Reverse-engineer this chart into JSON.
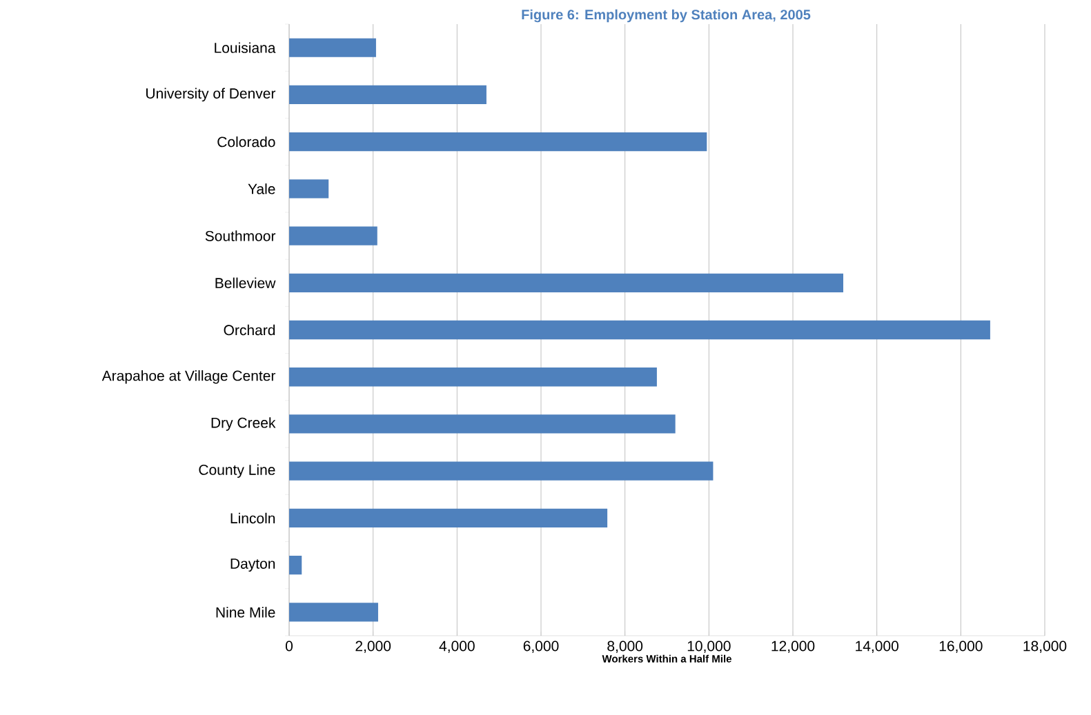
{
  "chart_data": {
    "type": "bar",
    "orientation": "horizontal",
    "title": "Figure 6: Employment by Station Area, 2005",
    "xlabel": "Workers Within a Half Mile",
    "categories": [
      "Louisiana",
      "University of Denver",
      "Colorado",
      "Yale",
      "Southmoor",
      "Belleview",
      "Orchard",
      "Arapahoe at Village Center",
      "Dry Creek",
      "County Line",
      "Lincoln",
      "Dayton",
      "Nine Mile"
    ],
    "values": [
      2070,
      4700,
      9950,
      940,
      2100,
      13200,
      16700,
      8760,
      9200,
      10100,
      7580,
      300,
      2120
    ],
    "color": "#4f81bd",
    "xlim": [
      0,
      18000
    ],
    "xticks": [
      {
        "value": 0,
        "label": "0"
      },
      {
        "value": 2000,
        "label": "2,000"
      },
      {
        "value": 4000,
        "label": "4,000"
      },
      {
        "value": 6000,
        "label": "6,000"
      },
      {
        "value": 8000,
        "label": "8,000"
      },
      {
        "value": 10000,
        "label": "10,000"
      },
      {
        "value": 12000,
        "label": "12,000"
      },
      {
        "value": 14000,
        "label": "14,000"
      },
      {
        "value": 16000,
        "label": "16,000"
      },
      {
        "value": 18000,
        "label": "18,000"
      }
    ],
    "grid": "x"
  }
}
